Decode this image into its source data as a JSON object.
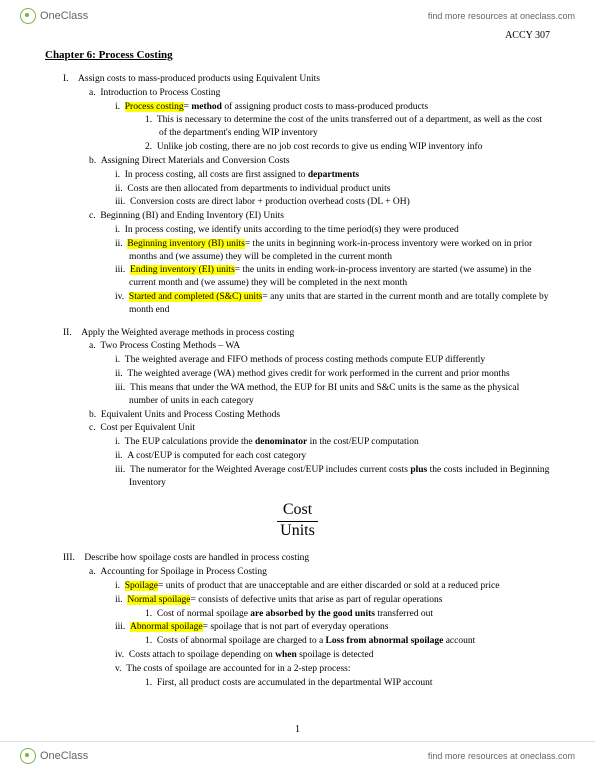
{
  "header": {
    "logo_text": "OneClass",
    "link_text": "find more resources at oneclass.com"
  },
  "course_code": "ACCY 307",
  "chapter_title": "Chapter 6: Process Costing",
  "formula": {
    "top": "Cost",
    "bottom": "Units"
  },
  "page_num": "1",
  "s1": {
    "n": "I.",
    "t": "Assign costs to mass-produced products using Equivalent Units",
    "a": {
      "n": "a.",
      "t": "Introduction to Process Costing",
      "i": {
        "n": "i.",
        "hl": "Process costing",
        "t": "= ",
        "b": "method",
        "t2": " of assigning product costs to mass-produced products",
        "1": {
          "n": "1.",
          "t": "This is necessary to determine the cost of the units transferred out of a department, as well as the cost of the department's ending WIP inventory"
        },
        "2": {
          "n": "2.",
          "t": "Unlike job costing, there are no job cost records to give us ending WIP inventory info"
        }
      }
    },
    "b": {
      "n": "b.",
      "t": "Assigning Direct Materials and Conversion Costs",
      "i": {
        "n": "i.",
        "t": "In process costing, all costs are first assigned to ",
        "b": "departments"
      },
      "ii": {
        "n": "ii.",
        "t": "Costs are then allocated from departments to individual product units"
      },
      "iii": {
        "n": "iii.",
        "t": "Conversion costs are direct labor + production overhead costs (DL + OH)"
      }
    },
    "c": {
      "n": "c.",
      "t": "Beginning (BI) and Ending Inventory (EI) Units",
      "i": {
        "n": "i.",
        "t": "In process costing, we identify units according to the time period(s) they were produced"
      },
      "ii": {
        "n": "ii.",
        "hl": "Beginning inventory (BI) units",
        "t": "= the units in beginning work-in-process inventory were worked on in prior months and (we assume) they will be completed in the current month"
      },
      "iii": {
        "n": "iii.",
        "hl": "Ending inventory (EI) units",
        "t": "= the units in ending work-in-process inventory are started (we assume) in the current month and (we assume) they will be completed in the next month"
      },
      "iv": {
        "n": "iv.",
        "hl": "Started and completed (S&C) units",
        "t": "= any units that are started in the current month and are totally complete by month end"
      }
    }
  },
  "s2": {
    "n": "II.",
    "t": "Apply the Weighted average methods in process costing",
    "a": {
      "n": "a.",
      "t": "Two Process Costing Methods – WA",
      "i": {
        "n": "i.",
        "t": "The weighted average and FIFO methods of process costing methods compute EUP differently"
      },
      "ii": {
        "n": "ii.",
        "t": "The weighted average (WA) method gives credit for work performed in the current and prior months"
      },
      "iii": {
        "n": "iii.",
        "t": "This means that under the WA method, the EUP for BI units and S&C units is the same as the physical number of units in each category"
      }
    },
    "b": {
      "n": "b.",
      "t": "Equivalent Units and Process Costing Methods"
    },
    "c": {
      "n": "c.",
      "t": "Cost per Equivalent Unit",
      "i": {
        "n": "i.",
        "t": "The EUP calculations provide the ",
        "b": "denominator",
        "t2": " in the cost/EUP computation"
      },
      "ii": {
        "n": "ii.",
        "t": "A cost/EUP is computed for each cost category"
      },
      "iii": {
        "n": "iii.",
        "t": "The numerator for the Weighted Average cost/EUP includes current costs ",
        "b": "plus",
        "t2": " the costs included in Beginning Inventory"
      }
    }
  },
  "s3": {
    "n": "III.",
    "t": "Describe how spoilage costs are handled in process costing",
    "a": {
      "n": "a.",
      "t": "Accounting for Spoilage in Process Costing",
      "i": {
        "n": "i.",
        "hl": "Spoilage",
        "t": "= units of product that are unacceptable and are either discarded or sold at a reduced price"
      },
      "ii": {
        "n": "ii.",
        "hl": "Normal spoilage",
        "t": "= consists of defective units that arise as part of regular operations",
        "1": {
          "n": "1.",
          "t": "Cost of normal spoilage ",
          "b": "are absorbed by the good units",
          "t2": " transferred out"
        }
      },
      "iii": {
        "n": "iii.",
        "hl": "Abnormal spoilage",
        "t": "= spoilage that is not part of everyday operations",
        "1": {
          "n": "1.",
          "t": "Costs of abnormal spoilage are charged to a ",
          "b": "Loss from abnormal spoilage",
          "t2": " account"
        }
      },
      "iv": {
        "n": "iv.",
        "t": "Costs attach to spoilage depending on ",
        "b": "when",
        "t2": " spoilage is detected"
      },
      "v": {
        "n": "v.",
        "t": "The costs of spoilage are accounted for in a 2-step process:",
        "1": {
          "n": "1.",
          "t": "First, all product costs are accumulated in the departmental WIP account"
        }
      }
    }
  }
}
